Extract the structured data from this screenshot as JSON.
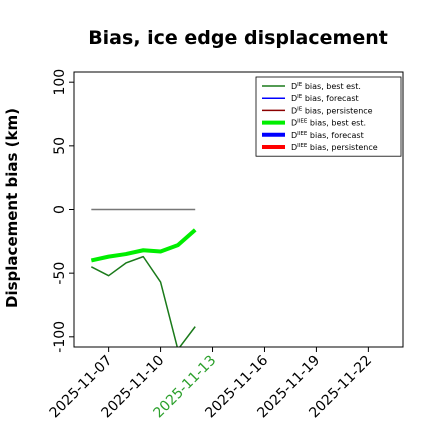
{
  "chart_data": {
    "type": "line",
    "title": "Bias, ice edge displacement",
    "ylabel": "Displacement bias (km)",
    "xlabel": "",
    "ylim": [
      -108,
      108
    ],
    "xlim": [
      "2025-11-05",
      "2025-11-24"
    ],
    "yticks": [
      100,
      50,
      0,
      -50,
      -100
    ],
    "xticks": [
      "2025-11-07",
      "2025-11-10",
      "2025-11-13",
      "2025-11-16",
      "2025-11-19",
      "2025-11-22"
    ],
    "highlighted_xtick": "2025-11-13",
    "highlight_color": "#2ca02c",
    "grid": false,
    "legend_position": "top-right",
    "legend": [
      {
        "label_main": "D",
        "label_sup": "IE",
        "label_rest": " bias, best est.",
        "color": "#1a7a1a",
        "width": 1.5
      },
      {
        "label_main": "D",
        "label_sup": "IE",
        "label_rest": " bias, forecast",
        "color": "#0000ff",
        "width": 1.5
      },
      {
        "label_main": "D",
        "label_sup": "IE",
        "label_rest": " bias, persistence",
        "color": "#8b0000",
        "width": 1.5
      },
      {
        "label_main": "D",
        "label_sup": "IIEE",
        "label_rest": " bias, best est.",
        "color": "#00ee00",
        "width": 4
      },
      {
        "label_main": "D",
        "label_sup": "IIEE",
        "label_rest": " bias, forecast",
        "color": "#0000ff",
        "width": 4
      },
      {
        "label_main": "D",
        "label_sup": "IIEE",
        "label_rest": " bias, persistence",
        "color": "#ff0000",
        "width": 4
      }
    ],
    "series": [
      {
        "color": "#1a7a1a",
        "width": 1.5,
        "x": [
          "2025-11-06",
          "2025-11-07",
          "2025-11-08",
          "2025-11-09",
          "2025-11-10",
          "2025-11-11",
          "2025-11-12"
        ],
        "values": [
          -45,
          -52,
          -42,
          -37,
          -57,
          -110,
          -92
        ]
      },
      {
        "color": "#00ee00",
        "width": 4,
        "x": [
          "2025-11-06",
          "2025-11-07",
          "2025-11-08",
          "2025-11-09",
          "2025-11-10",
          "2025-11-11",
          "2025-11-12"
        ],
        "values": [
          -40,
          -37,
          -35,
          -32,
          -33,
          -28,
          -16
        ]
      },
      {
        "color": "#777777",
        "width": 1.5,
        "x": [
          "2025-11-06",
          "2025-11-12"
        ],
        "values": [
          0,
          0
        ]
      }
    ]
  }
}
